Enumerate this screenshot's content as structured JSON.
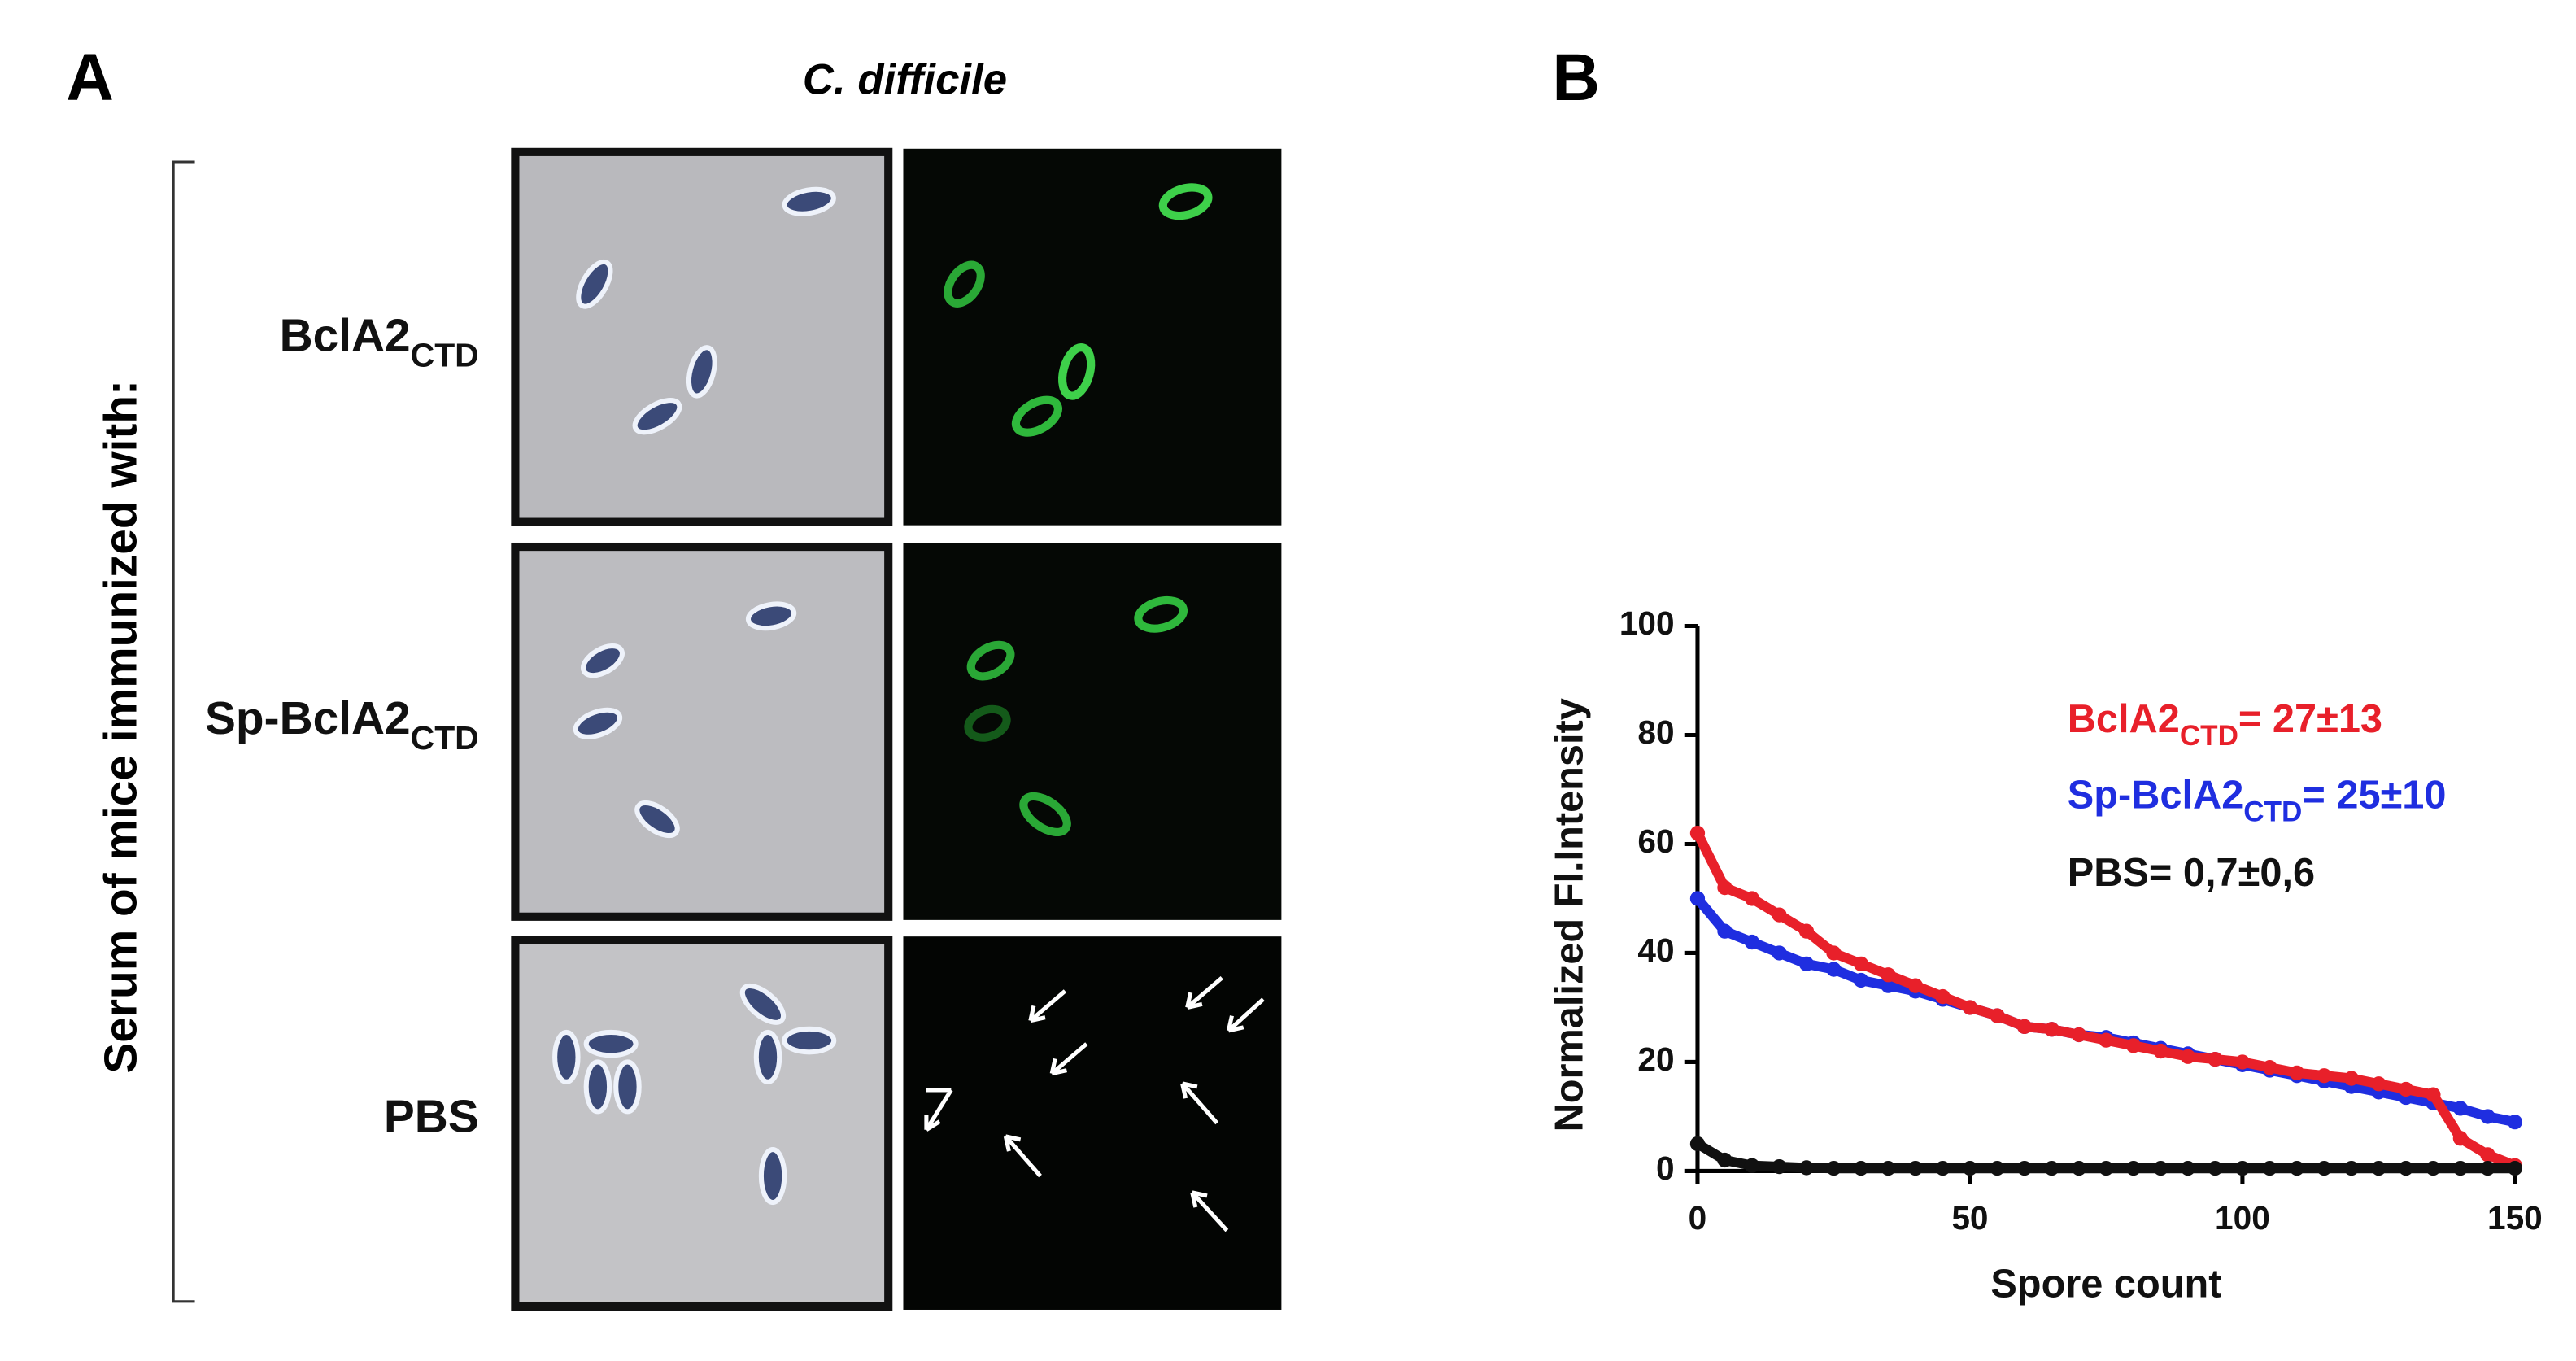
{
  "panel_a": {
    "label": "A",
    "title": "C. difficile",
    "side_label": "Serum of mice immunized with:",
    "rows": [
      {
        "name": "BclA2",
        "sub": "CTD"
      },
      {
        "name": "Sp-BclA2",
        "sub": "CTD"
      },
      {
        "name": "PBS"
      }
    ]
  },
  "panel_b_label": "B",
  "chart_data": {
    "type": "scatter",
    "x": [
      0,
      5,
      10,
      15,
      20,
      25,
      30,
      35,
      40,
      45,
      50,
      55,
      60,
      65,
      70,
      75,
      80,
      85,
      90,
      95,
      100,
      105,
      110,
      115,
      120,
      125,
      130,
      135,
      140,
      145,
      150
    ],
    "series": [
      {
        "name": "Sp-BclA2",
        "sub": "CTD",
        "stat": "= 25±10",
        "color": "#1f2ee0",
        "values": [
          50,
          44,
          42,
          40,
          38,
          37,
          35,
          34,
          33,
          31.5,
          30,
          28.5,
          26.5,
          26,
          25,
          24.5,
          23.5,
          22.5,
          21.5,
          20.5,
          19.5,
          18.5,
          17.5,
          16.5,
          15.5,
          14.5,
          13.5,
          12.5,
          11.5,
          10,
          9
        ]
      },
      {
        "name": "BclA2",
        "sub": "CTD",
        "stat": "= 27±13",
        "color": "#e8202a",
        "values": [
          62,
          52,
          50,
          47,
          44,
          40,
          38,
          36,
          34,
          32,
          30,
          28.5,
          26.5,
          26,
          25,
          24,
          23,
          22,
          21,
          20.5,
          20,
          19,
          18,
          17.5,
          17,
          16,
          15,
          14,
          6,
          3,
          1
        ]
      },
      {
        "name": "PBS",
        "stat": "= 0,7±0,6",
        "color": "#111111",
        "values": [
          5,
          2,
          1,
          0.8,
          0.6,
          0.5,
          0.5,
          0.5,
          0.5,
          0.5,
          0.5,
          0.5,
          0.5,
          0.5,
          0.5,
          0.5,
          0.5,
          0.5,
          0.5,
          0.5,
          0.5,
          0.5,
          0.5,
          0.5,
          0.5,
          0.5,
          0.5,
          0.5,
          0.5,
          0.5,
          0.5
        ]
      }
    ],
    "xlabel": "Spore count",
    "ylabel": "Normalized Fl.Intensity",
    "xlim": [
      0,
      150
    ],
    "ylim": [
      0,
      100
    ],
    "xticks": [
      0,
      50,
      100,
      150
    ],
    "yticks": [
      0,
      20,
      40,
      60,
      80,
      100
    ]
  }
}
